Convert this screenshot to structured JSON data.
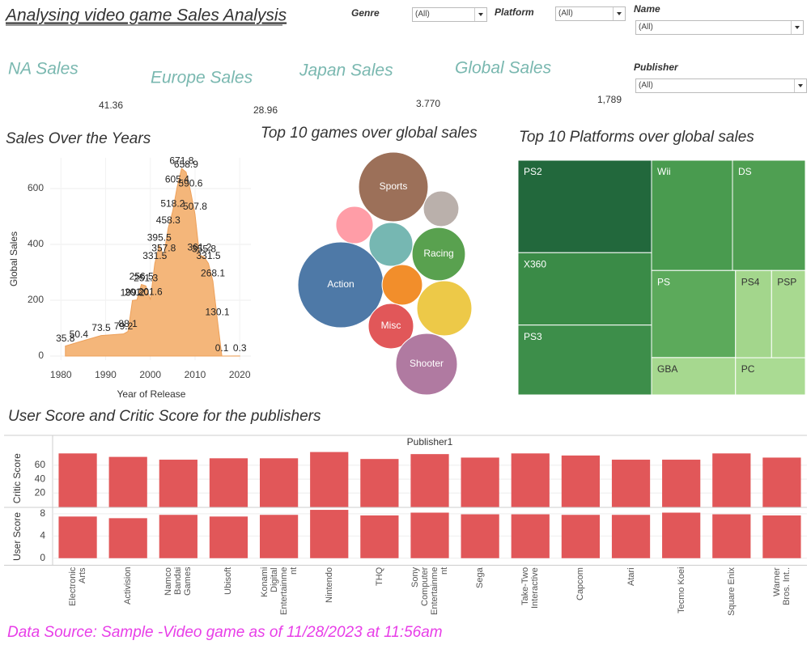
{
  "title": "Analysing video game Sales Analysis",
  "filters": [
    {
      "label": "Genre",
      "value": "(All)"
    },
    {
      "label": "Platform",
      "value": "(All)"
    },
    {
      "label": "Name",
      "value": "(All)"
    },
    {
      "label": "Publisher",
      "value": "(All)"
    }
  ],
  "kpis": [
    {
      "label": "NA Sales",
      "value": "41.36"
    },
    {
      "label": "Europe Sales",
      "value": "28.96"
    },
    {
      "label": "Japan Sales",
      "value": "3.770"
    },
    {
      "label": "Global Sales",
      "value": "1,789"
    }
  ],
  "chart_data": [
    {
      "type": "area",
      "title": "Sales Over the Years",
      "x_label": "Year of Release",
      "y_label": "Global Sales",
      "color": "#f4b67a",
      "line_color": "#eda05a",
      "x": [
        1981,
        1984,
        1989,
        1994,
        1995,
        1996,
        1997,
        1998,
        1999,
        2000,
        2001,
        2002,
        2003,
        2004,
        2005,
        2006,
        2007,
        2008,
        2009,
        2010,
        2011,
        2012,
        2013,
        2014,
        2015,
        2016,
        2020
      ],
      "values": [
        35.8,
        50.4,
        73.5,
        79.2,
        88.1,
        199.2,
        201.0,
        256.5,
        251.3,
        201.6,
        331.5,
        395.5,
        357.8,
        458.3,
        518.2,
        605.4,
        671.8,
        658.9,
        590.6,
        507.8,
        361.2,
        355.8,
        331.5,
        268.1,
        130.1,
        0.1,
        0.3
      ],
      "value_labels": [
        "35.8",
        "50.4",
        "73.5",
        "79.2",
        "88.1",
        "199.2",
        "201.0",
        "256.5",
        "251.3",
        "201.6",
        "331.5",
        "395.5",
        "357.8",
        "458.3",
        "518.2",
        "605.4",
        "671.8",
        "658.9",
        "590.6",
        "507.8",
        "361.2",
        "355.8",
        "331.5",
        "268.1",
        "130.1",
        "0.1",
        "0.3"
      ],
      "xlim": [
        1977.6,
        2022.5
      ],
      "xticks": [
        1980,
        1990,
        2000,
        2010,
        2020
      ],
      "ylim": [
        -14.5,
        710
      ],
      "yticks": [
        0,
        200,
        400,
        600
      ],
      "grid": true
    },
    {
      "type": "bubble",
      "title": "Top 10 games over global sales",
      "categories": [
        "Sports",
        null,
        null,
        null,
        "Racing",
        "Action",
        null,
        null,
        "Misc",
        "Shooter"
      ],
      "values": [
        184,
        48,
        53,
        73,
        108,
        280,
        62,
        115,
        78,
        144
      ],
      "colors": [
        "#9c7059",
        "#bab0ab",
        "#ff9da7",
        "#76b7b2",
        "#59a14f",
        "#4e79a7",
        "#f28e2b",
        "#edc948",
        "#e15759",
        "#b07aa1"
      ]
    },
    {
      "type": "treemap",
      "title": "Top 10 Platforms over global sales",
      "categories": [
        "PS2",
        "X360",
        "PS3",
        "Wii",
        "DS",
        "PS",
        "PS4",
        "PSP",
        "GBA",
        "PC"
      ],
      "values": [
        1233,
        965,
        931,
        891,
        802,
        730,
        314,
        294,
        313,
        259
      ],
      "colors": [
        "#22683c",
        "#3a8b47",
        "#3d8e4a",
        "#499b4f",
        "#4f9f52",
        "#5caa5b",
        "#a3d68c",
        "#a8d990",
        "#a6d88f",
        "#aadb93"
      ]
    },
    {
      "type": "bar",
      "title": "User Score and Critic Score for the publishers",
      "x_label": "Publisher1",
      "categories": [
        "Electronic Arts",
        "Activision",
        "Namco Bandai Games",
        "Ubisoft",
        "Konami Digital Entertainment",
        "Nintendo",
        "THQ",
        "Sony Computer Entertainment",
        "Sega",
        "Take-Two Interactive",
        "Capcom",
        "Atari",
        "Tecmo Koei",
        "Square Enix",
        "Warner Bros. Int.."
      ],
      "series": [
        {
          "name": "Critic Score",
          "color": "#e15759",
          "values": [
            77,
            72,
            68,
            70,
            70,
            79,
            69,
            76,
            71,
            77,
            74,
            68,
            68,
            77,
            71
          ],
          "ylim": [
            0,
            82
          ],
          "yticks": [
            20,
            40,
            60
          ]
        },
        {
          "name": "User Score",
          "color": "#e15759",
          "values": [
            7.5,
            7.2,
            7.8,
            7.5,
            7.8,
            8.7,
            7.7,
            8.2,
            7.9,
            7.9,
            7.8,
            7.8,
            8.2,
            7.9,
            7.7
          ],
          "ylim": [
            -1.2,
            9
          ],
          "yticks": [
            0,
            4,
            8
          ]
        }
      ],
      "grid": true
    }
  ],
  "footer": "Data Source: Sample -Video game as of 11/28/2023 at 11:56am"
}
